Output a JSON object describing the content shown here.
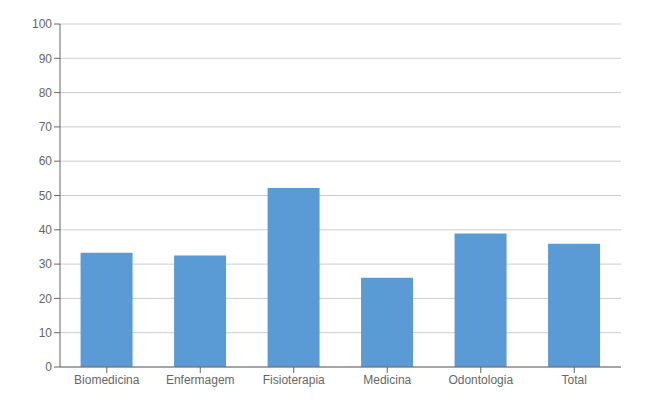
{
  "chart_data": {
    "type": "bar",
    "categories": [
      "Biomedicina",
      "Enfermagem",
      "Fisioterapia",
      "Medicina",
      "Odontologia",
      "Total"
    ],
    "values": [
      33.3,
      32.5,
      52.2,
      26.0,
      38.9,
      35.9
    ],
    "color": "#5b9bd5",
    "ylim": [
      0,
      100
    ],
    "yticks": [
      0,
      10,
      20,
      30,
      40,
      50,
      60,
      70,
      80,
      90,
      100
    ],
    "grid": true
  }
}
